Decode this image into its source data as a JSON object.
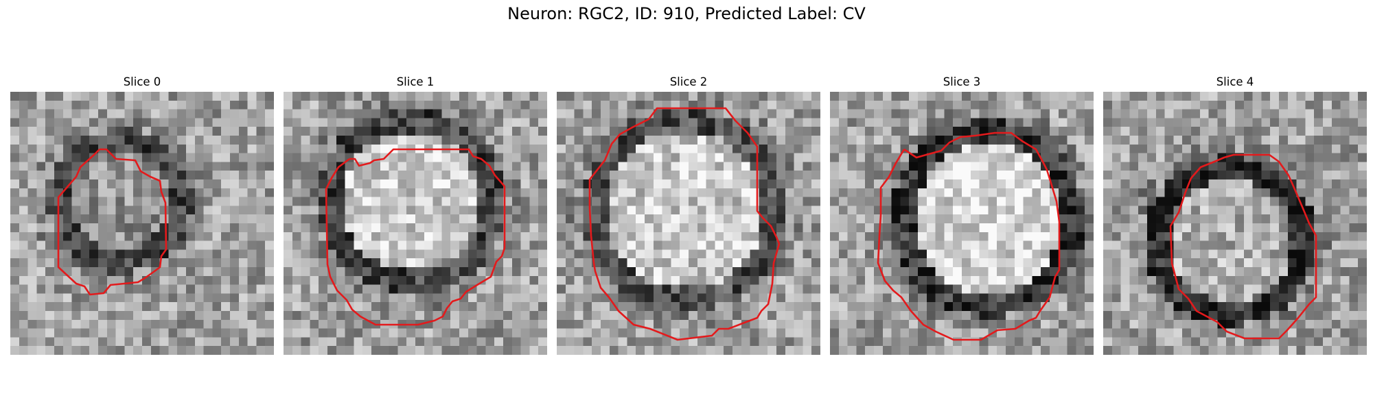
{
  "title": "Neuron: RGC2, ID: 910, Predicted Label: CV",
  "overlay_color": "#e31a1c",
  "colormap": "gray",
  "panels": [
    {
      "title": "Slice 0"
    },
    {
      "title": "Slice 1"
    },
    {
      "title": "Slice 2"
    },
    {
      "title": "Slice 3"
    },
    {
      "title": "Slice 4"
    }
  ]
}
